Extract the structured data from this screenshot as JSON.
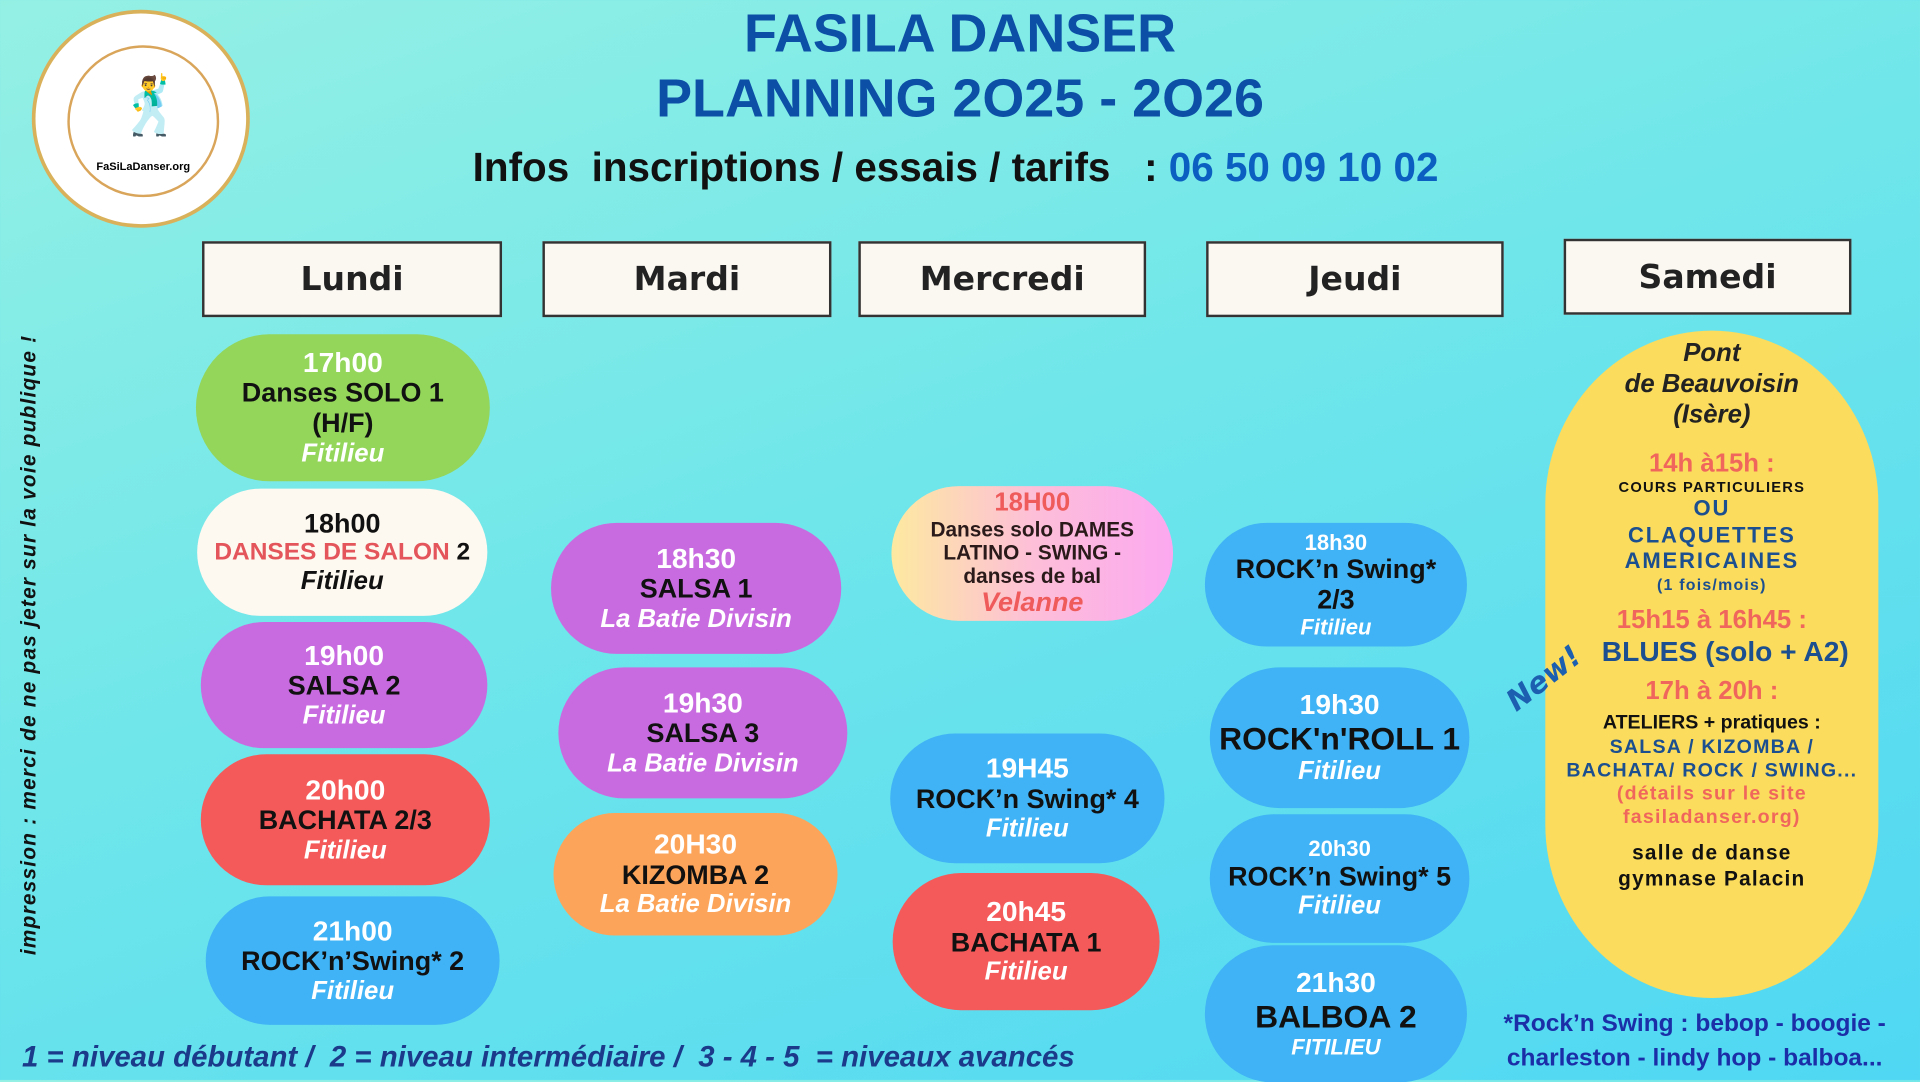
{
  "logo": {
    "text": "FaSiLaDanser.org",
    "icon": "dancers-icon"
  },
  "header": {
    "title_line1": "FASILA  DANSER",
    "title_line2": "PLANNING 2O25 - 2O26",
    "infos_label": "Infos  inscriptions / essais / tarifs   : ",
    "phone": "06 50 09 10 02"
  },
  "days": [
    "Lundi",
    "Mardi",
    "Mercredi",
    "Jeudi",
    "Samedi"
  ],
  "colors": {
    "green": "#93d65a",
    "cream": "#fdf8f0",
    "purple": "#c96be0",
    "red": "#f55a5a",
    "blue": "#3fb3f5",
    "orange": "#fca55a",
    "yellow": "#fbdc5c",
    "title": "#0b4fa6"
  },
  "sessions": [
    {
      "day": "Lundi",
      "color": "#93d65a",
      "lines": [
        {
          "style": "l-time",
          "text": "17h00"
        },
        {
          "style": "l-title",
          "text": "Danses SOLO 1"
        },
        {
          "style": "l-title",
          "text": "(H/F)"
        },
        {
          "style": "l-place",
          "text": "Fitilieu"
        }
      ]
    },
    {
      "day": "Lundi",
      "color": "#fdf8f0",
      "lines": [
        {
          "style": "l-title",
          "text": "18h00"
        },
        {
          "style": "l-salon",
          "text": "DANSES DE SALON",
          "suffix": " 2"
        },
        {
          "style": "l-place-dark",
          "text": "Fitilieu"
        }
      ]
    },
    {
      "day": "Lundi",
      "color": "#c96be0",
      "lines": [
        {
          "style": "l-time",
          "text": "19h00"
        },
        {
          "style": "l-title",
          "text": "SALSA 2"
        },
        {
          "style": "l-place",
          "text": "Fitilieu"
        }
      ]
    },
    {
      "day": "Lundi",
      "color": "#f55a5a",
      "lines": [
        {
          "style": "l-time",
          "text": "20h00"
        },
        {
          "style": "l-title",
          "text": "BACHATA 2/3"
        },
        {
          "style": "l-place",
          "text": "Fitilieu"
        }
      ]
    },
    {
      "day": "Lundi",
      "color": "#3fb3f5",
      "lines": [
        {
          "style": "l-time",
          "text": "21h00"
        },
        {
          "style": "l-title",
          "text": "ROCK’n’Swing* 2"
        },
        {
          "style": "l-place",
          "text": "Fitilieu"
        }
      ]
    },
    {
      "day": "Mardi",
      "color": "#c96be0",
      "lines": [
        {
          "style": "l-time",
          "text": "18h30"
        },
        {
          "style": "l-title",
          "text": "SALSA 1"
        },
        {
          "style": "l-place",
          "text": "La Batie Divisin"
        }
      ]
    },
    {
      "day": "Mardi",
      "color": "#c96be0",
      "lines": [
        {
          "style": "l-time",
          "text": "19h30"
        },
        {
          "style": "l-title",
          "text": "SALSA 3"
        },
        {
          "style": "l-place",
          "text": "La Batie Divisin"
        }
      ]
    },
    {
      "day": "Mardi",
      "color": "#fca55a",
      "lines": [
        {
          "style": "l-time",
          "text": "20H30"
        },
        {
          "style": "l-title",
          "text": "KIZOMBA 2"
        },
        {
          "style": "l-place",
          "text": "La Batie Divisin"
        }
      ]
    },
    {
      "day": "Mercredi",
      "color": "linear-gradient(90deg,#fde9a0,#fdbfd8,#fca8f0)",
      "lines": [
        {
          "style": "l-time-red",
          "text": "18H00"
        },
        {
          "style": "l-small-dark",
          "text": "Danses solo DAMES"
        },
        {
          "style": "l-small-dark",
          "text": "LATINO - SWING -"
        },
        {
          "style": "l-small-dark",
          "text": "danses de bal"
        },
        {
          "style": "l-place-red",
          "text": "Velanne"
        }
      ]
    },
    {
      "day": "Mercredi",
      "color": "#3fb3f5",
      "lines": [
        {
          "style": "l-time",
          "text": "19H45"
        },
        {
          "style": "l-title",
          "text": "ROCK’n Swing* 4"
        },
        {
          "style": "l-place",
          "text": "Fitilieu"
        }
      ]
    },
    {
      "day": "Mercredi",
      "color": "#f55a5a",
      "lines": [
        {
          "style": "l-time",
          "text": "20h45"
        },
        {
          "style": "l-title",
          "text": "BACHATA 1"
        },
        {
          "style": "l-place",
          "text": "Fitilieu"
        }
      ]
    },
    {
      "day": "Jeudi",
      "color": "#3fb3f5",
      "lines": [
        {
          "style": "l-time-sm",
          "text": "18h30"
        },
        {
          "style": "l-title",
          "text": "ROCK’n Swing*"
        },
        {
          "style": "l-title",
          "text": "2/3"
        },
        {
          "style": "l-place-caps",
          "text": "Fitilieu"
        }
      ]
    },
    {
      "day": "Jeudi",
      "color": "#3fb3f5",
      "lines": [
        {
          "style": "l-time",
          "text": "19h30"
        },
        {
          "style": "l-title-big",
          "text": "ROCK'n'ROLL 1"
        },
        {
          "style": "l-place",
          "text": "Fitilieu"
        }
      ]
    },
    {
      "day": "Jeudi",
      "color": "#3fb3f5",
      "lines": [
        {
          "style": "l-time-sm",
          "text": "20h30"
        },
        {
          "style": "l-title",
          "text": "ROCK’n Swing* 5"
        },
        {
          "style": "l-place",
          "text": "Fitilieu"
        }
      ]
    },
    {
      "day": "Jeudi",
      "color": "#3fb3f5",
      "lines": [
        {
          "style": "l-time",
          "text": "21h30"
        },
        {
          "style": "l-title-big",
          "text": "BALBOA 2"
        },
        {
          "style": "l-place-caps",
          "text": "FITILIEU"
        }
      ]
    }
  ],
  "samedi": {
    "location": [
      "Pont",
      "de Beauvoisin",
      "(Isère)"
    ],
    "slot1_time": "14h à15h :",
    "slot1_lines": [
      "COURS PARTICULIERS",
      "OU",
      "CLAQUETTES",
      "AMERICAINES",
      "(1 fois/mois)"
    ],
    "slot2_time": "15h15 à 16h45 :",
    "slot2_title": "BLUES (solo + A2)",
    "new_badge": "New!",
    "slot3_time": "17h à 20h :",
    "slot3_lines": [
      "ATELIERS  + pratiques :",
      "SALSA / KIZOMBA /",
      "BACHATA/ ROCK / SWING...",
      "(détails sur le site",
      "fasiladanser.org)"
    ],
    "venue": [
      "salle de danse",
      "gymnase Palacin"
    ]
  },
  "side_note": "impression : merci de ne pas jeter sur la voie publique !",
  "legend": "1 = niveau débutant /  2 = niveau intermédiaire /  3 - 4 - 5  = niveaux avancés",
  "rock_note": [
    "*Rock’n Swing : bebop - boogie -",
    "charleston - lindy hop - balboa..."
  ]
}
